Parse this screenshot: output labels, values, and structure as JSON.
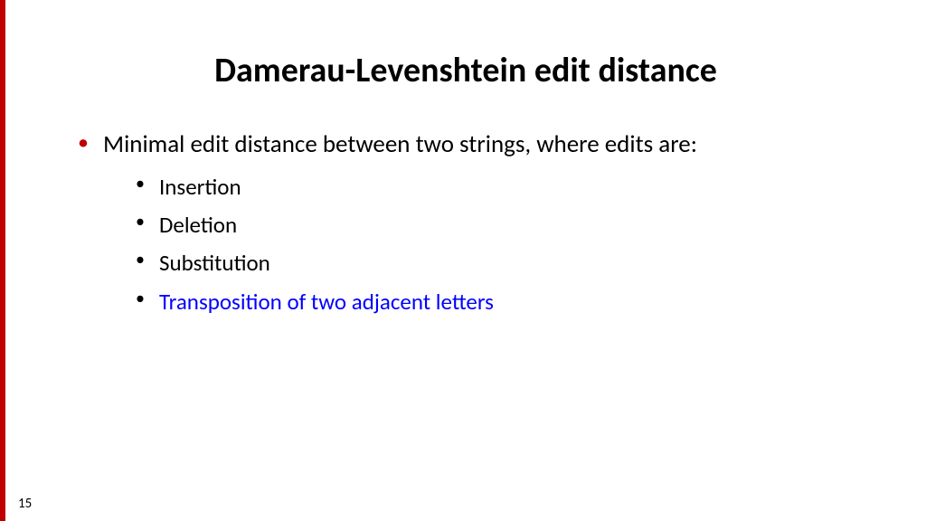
{
  "colors": {
    "accent": "#c00000",
    "link": "#0000ff",
    "text": "#000000",
    "background": "#ffffff"
  },
  "slide": {
    "title": "Damerau-Levenshtein edit distance",
    "page_number": "15",
    "bullets": [
      {
        "text": "Minimal edit distance between two strings, where edits are:",
        "children": [
          {
            "text": "Insertion",
            "highlight": false
          },
          {
            "text": "Deletion",
            "highlight": false
          },
          {
            "text": "Substitution",
            "highlight": false
          },
          {
            "text": "Transposition of two adjacent letters",
            "highlight": true
          }
        ]
      }
    ]
  }
}
